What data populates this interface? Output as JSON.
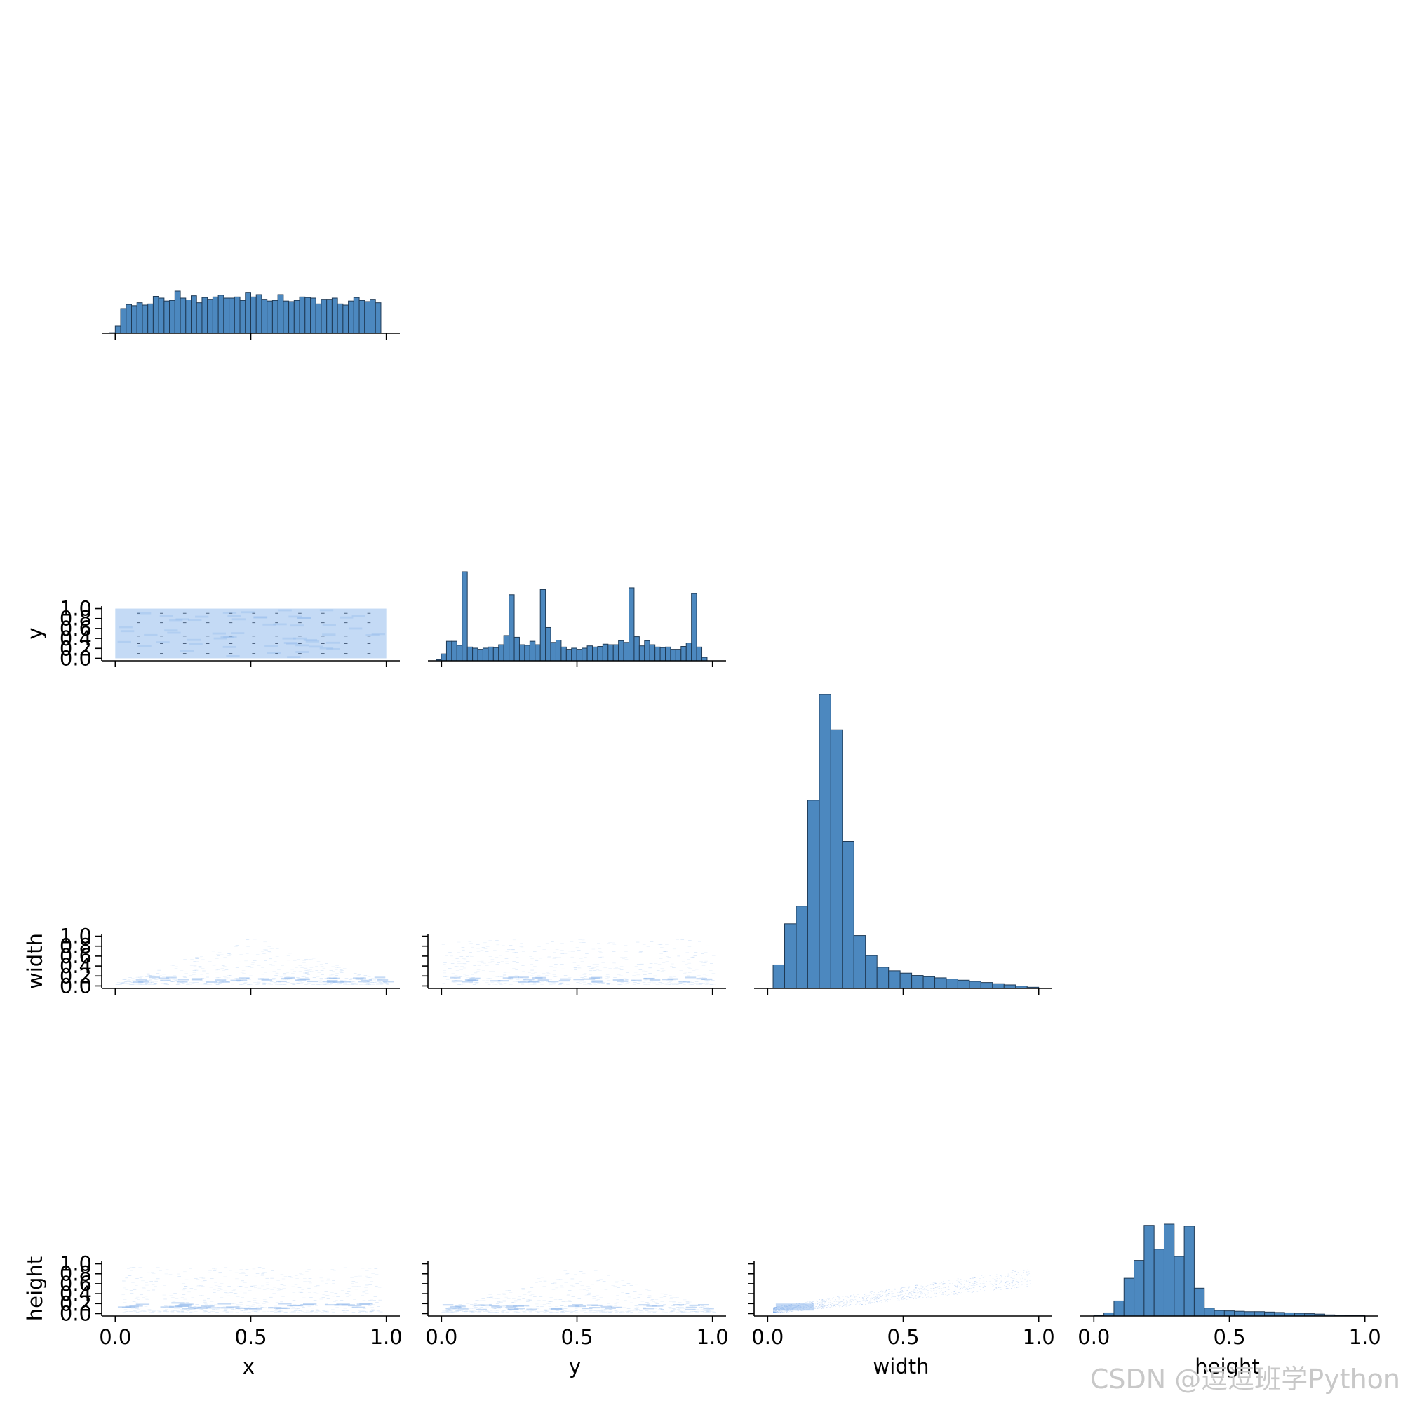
{
  "chart_data": {
    "type": "pairplot",
    "variables": [
      "x",
      "y",
      "width",
      "height"
    ],
    "corner": true,
    "colors": {
      "bar_fill": "#4c88bf",
      "bar_edge": "#1f3a55",
      "heat_light": "#c4daf5",
      "heat_mid": "#8fb8ec",
      "heat_dark": "#2d6fd8",
      "heat_hot": "#2a3f5c"
    },
    "ticks": {
      "unit": {
        "values": [
          0.0,
          0.5,
          1.0
        ],
        "labels": [
          "0.0",
          "0.5",
          "1.0"
        ]
      },
      "y": {
        "values": [
          0.0,
          0.2,
          0.4,
          0.6,
          0.8,
          1.0
        ],
        "labels": [
          "0.0",
          "0.2",
          "0.4",
          "0.6",
          "0.8",
          "1.0"
        ]
      }
    },
    "histograms": [
      {
        "variable": "x",
        "bin_range": [
          -0.02,
          0.98
        ],
        "values": [
          1,
          12,
          42,
          49,
          47,
          52,
          48,
          50,
          63,
          60,
          55,
          56,
          72,
          60,
          57,
          64,
          52,
          61,
          58,
          62,
          65,
          60,
          60,
          62,
          56,
          70,
          62,
          66,
          58,
          55,
          56,
          66,
          55,
          54,
          56,
          62,
          61,
          60,
          50,
          58,
          58,
          60,
          50,
          48,
          55,
          61,
          56,
          54,
          58,
          52
        ]
      },
      {
        "variable": "y",
        "bin_range": [
          -0.02,
          0.98
        ],
        "values": [
          2,
          12,
          34,
          34,
          27,
          155,
          24,
          22,
          20,
          22,
          24,
          23,
          28,
          44,
          115,
          41,
          28,
          27,
          34,
          28,
          124,
          58,
          32,
          36,
          24,
          20,
          22,
          20,
          22,
          26,
          24,
          25,
          29,
          28,
          28,
          35,
          32,
          127,
          42,
          26,
          35,
          28,
          24,
          23,
          24,
          20,
          20,
          25,
          31,
          117,
          24,
          6
        ]
      },
      {
        "variable": "width",
        "bin_range": [
          0.02,
          1.0
        ],
        "values": [
          20,
          55,
          70,
          160,
          250,
          220,
          125,
          45,
          28,
          18,
          15,
          13,
          11,
          10,
          9,
          8,
          7,
          6,
          5,
          4,
          3,
          2,
          1
        ]
      },
      {
        "variable": "height",
        "bin_range": [
          0.0,
          1.0
        ],
        "values": [
          2,
          8,
          38,
          95,
          140,
          228,
          168,
          231,
          150,
          226,
          70,
          20,
          14,
          13,
          12,
          11,
          11,
          10,
          9,
          8,
          7,
          6,
          5,
          3,
          2,
          1,
          1
        ]
      }
    ],
    "bivariate": [
      {
        "x": "x",
        "y": "y",
        "kind": "hist2d",
        "shape": "uniform square"
      },
      {
        "x": "x",
        "y": "width",
        "kind": "hist2d",
        "shape": "triangle peaked at x=0.5"
      },
      {
        "x": "y",
        "y": "width",
        "kind": "hist2d",
        "shape": "spread, dense near width 0.1"
      },
      {
        "x": "x",
        "y": "height",
        "kind": "hist2d",
        "shape": "band near height 0.15"
      },
      {
        "x": "y",
        "y": "height",
        "kind": "hist2d",
        "shape": "triangle peaked at y=0.5"
      },
      {
        "x": "width",
        "y": "height",
        "kind": "hist2d",
        "shape": "positive correlation"
      }
    ]
  },
  "watermark": "CSDN @逗逗班学Python"
}
